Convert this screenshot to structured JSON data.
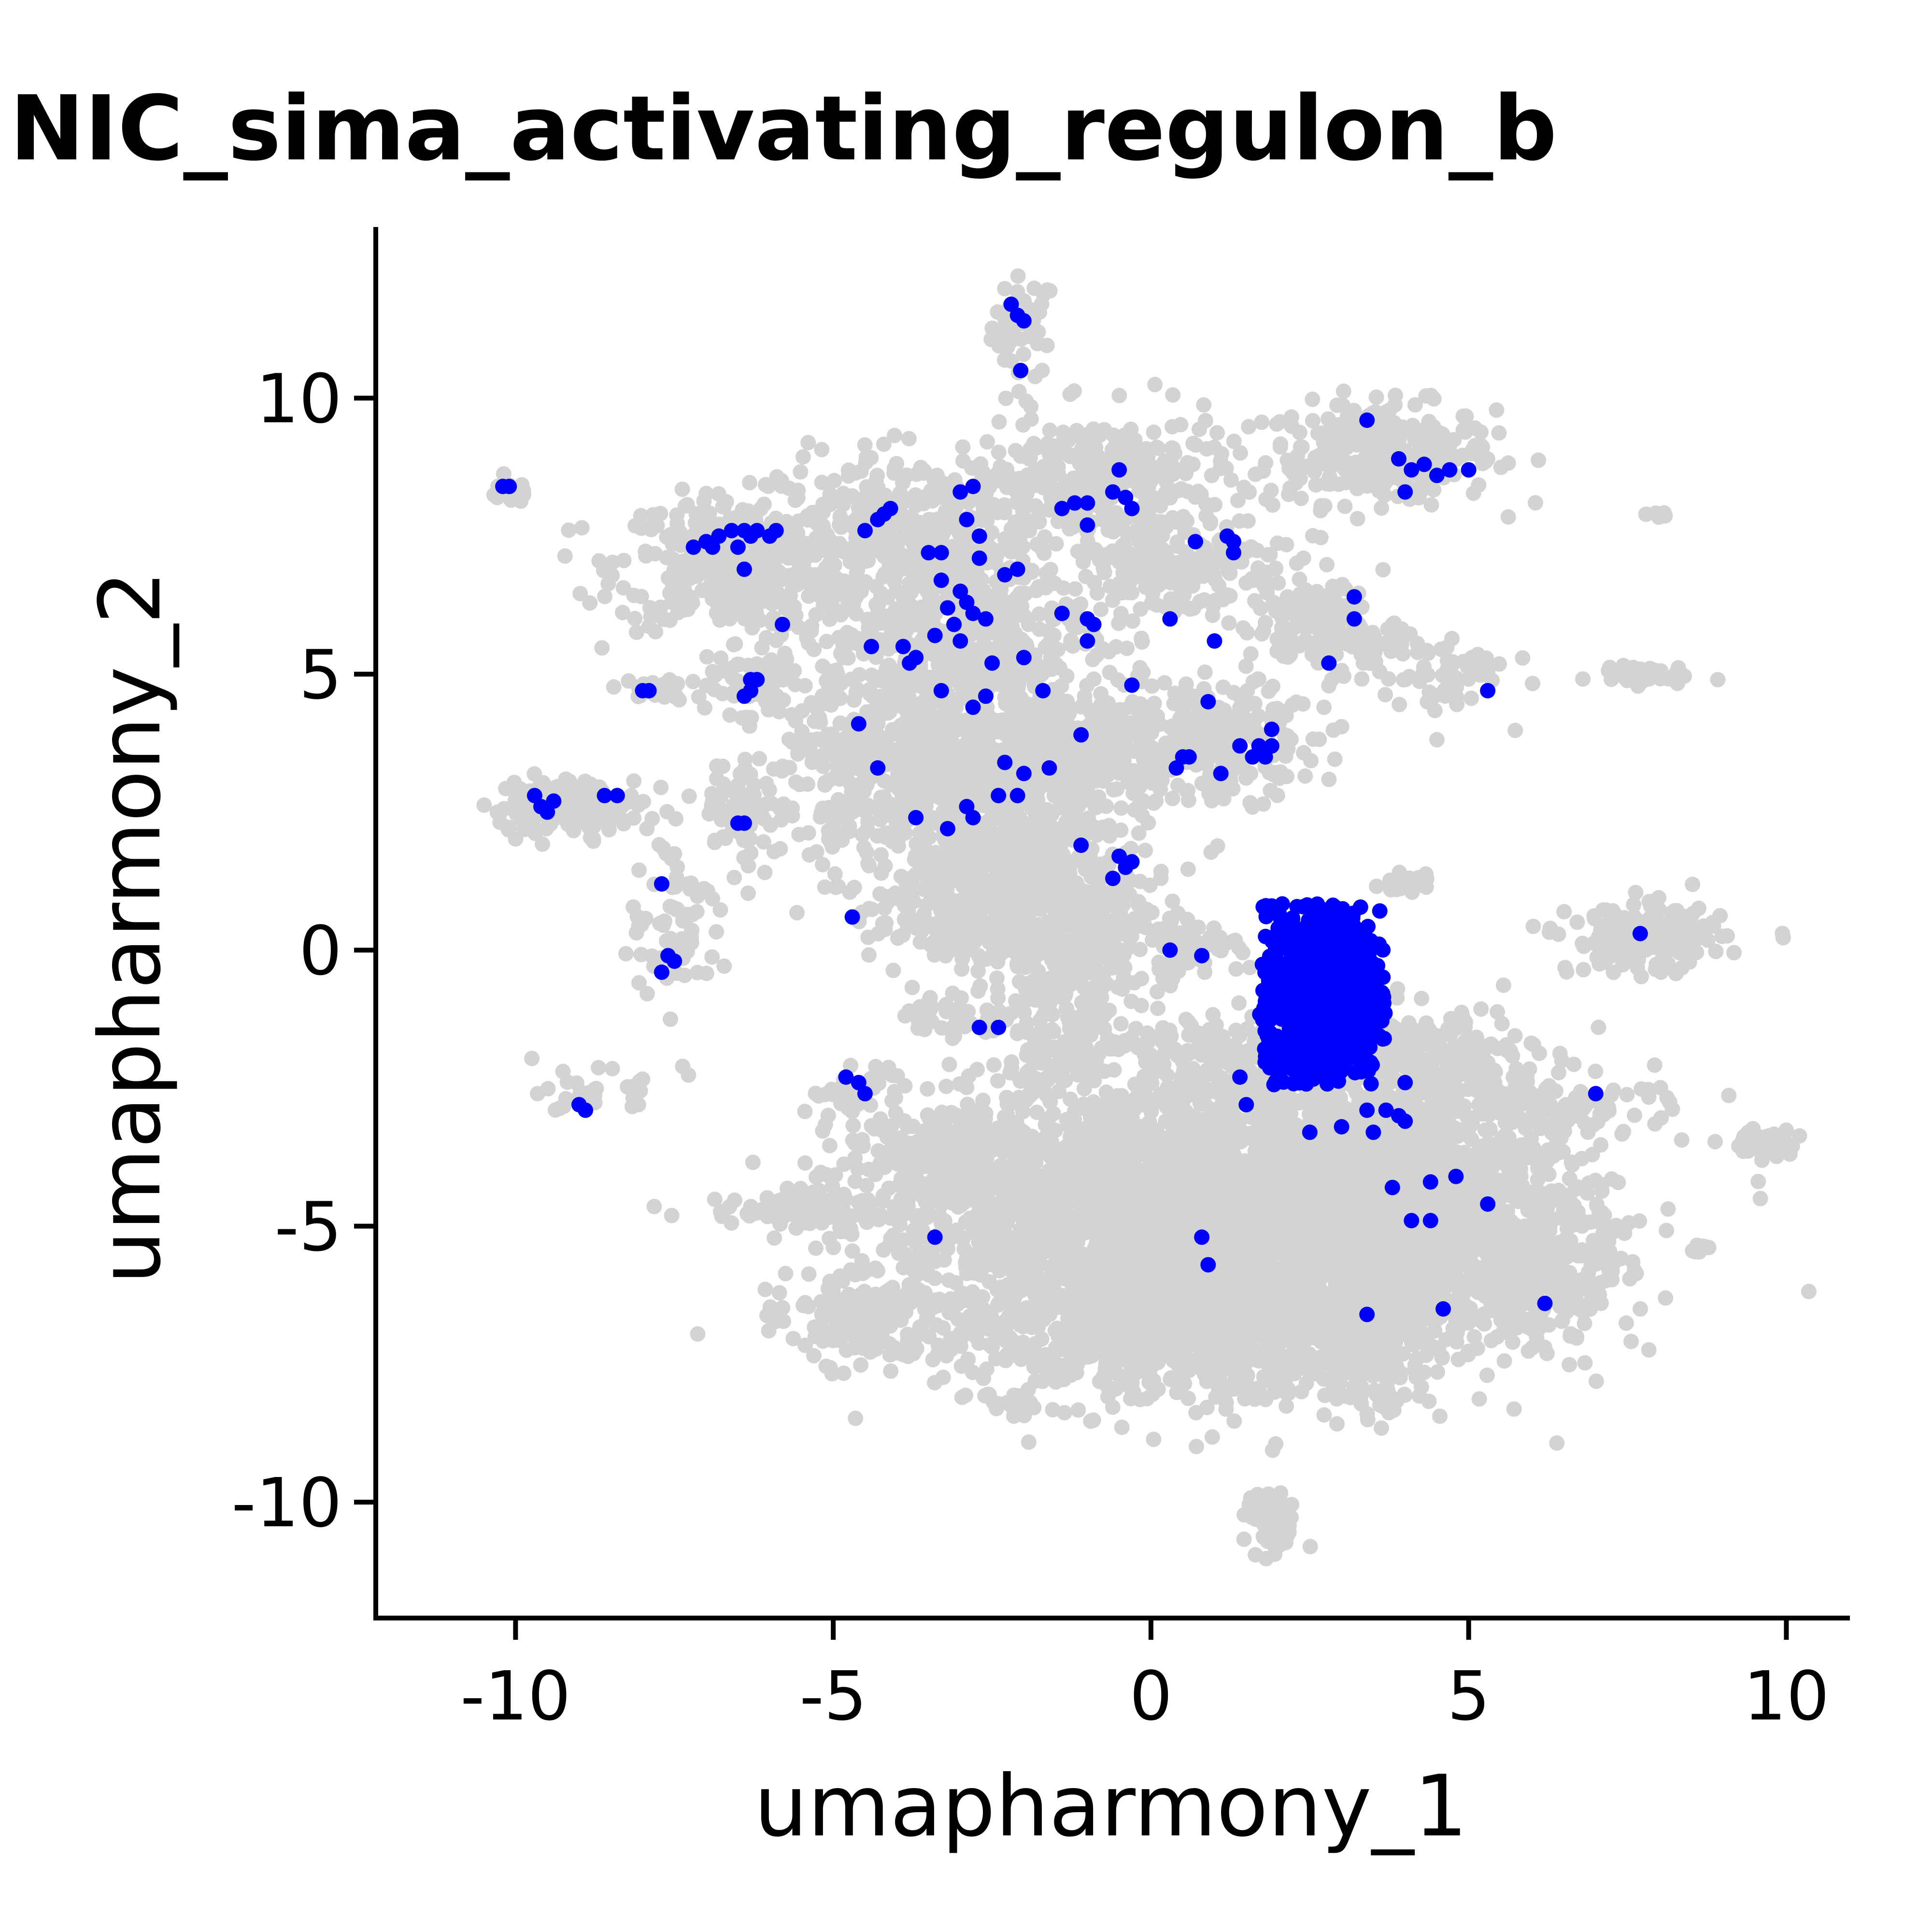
{
  "chart_data": {
    "type": "scatter",
    "title": "NIC_sima_activating_regulon_b",
    "xlabel": "umapharmony_1",
    "ylabel": "umapharmony_2",
    "xlim": [
      -12.2,
      11
    ],
    "ylim": [
      -12.1,
      13.1
    ],
    "xticks": [
      -10,
      -5,
      0,
      5,
      10
    ],
    "xtick_labels": [
      "-10",
      "-5",
      "0",
      "5",
      "10"
    ],
    "yticks": [
      -10,
      -5,
      0,
      5,
      10
    ],
    "ytick_labels": [
      "-10",
      "-5",
      "0",
      "5",
      "10"
    ],
    "grid": false,
    "legend": "none",
    "colors": {
      "background_cells": "#d3d3d3",
      "highlighted_cells": "#0000ff",
      "axis": "#000000"
    },
    "background_clusters": [
      {
        "cx": -2,
        "cy": 11.3,
        "sx": 0.25,
        "sy": 0.45,
        "n": 50
      },
      {
        "cx": 3.6,
        "cy": 9.0,
        "sx": 0.9,
        "sy": 0.45,
        "n": 300
      },
      {
        "cx": 8.0,
        "cy": 7.9,
        "sx": 0.1,
        "sy": 0.05,
        "n": 10
      },
      {
        "cx": -10.1,
        "cy": 8.3,
        "sx": 0.2,
        "sy": 0.1,
        "n": 20
      },
      {
        "cx": -6.6,
        "cy": 7.0,
        "sx": 0.9,
        "sy": 0.6,
        "n": 400
      },
      {
        "cx": -3.8,
        "cy": 7.4,
        "sx": 1.0,
        "sy": 0.8,
        "n": 400
      },
      {
        "cx": -0.8,
        "cy": 8.5,
        "sx": 1.0,
        "sy": 0.6,
        "n": 300
      },
      {
        "cx": -3.0,
        "cy": 5.8,
        "sx": 1.0,
        "sy": 0.8,
        "n": 300
      },
      {
        "cx": 0.4,
        "cy": 7.0,
        "sx": 0.9,
        "sy": 0.5,
        "n": 200
      },
      {
        "cx": 2.7,
        "cy": 5.8,
        "sx": 0.6,
        "sy": 0.4,
        "n": 150
      },
      {
        "cx": 4.6,
        "cy": 5.0,
        "sx": 0.5,
        "sy": 0.4,
        "n": 60
      },
      {
        "cx": 7.6,
        "cy": 5.0,
        "sx": 0.4,
        "sy": 0.1,
        "n": 40
      },
      {
        "cx": -6.3,
        "cy": 4.9,
        "sx": 0.4,
        "sy": 0.3,
        "n": 60
      },
      {
        "cx": -7.9,
        "cy": 4.7,
        "sx": 0.3,
        "sy": 0.1,
        "n": 20
      },
      {
        "cx": -3.2,
        "cy": 3.5,
        "sx": 1.3,
        "sy": 1.0,
        "n": 900
      },
      {
        "cx": -1.0,
        "cy": 3.7,
        "sx": 0.8,
        "sy": 0.6,
        "n": 300
      },
      {
        "cx": 1.2,
        "cy": 3.8,
        "sx": 0.7,
        "sy": 0.5,
        "n": 200
      },
      {
        "cx": -9.2,
        "cy": 2.6,
        "sx": 0.6,
        "sy": 0.25,
        "n": 150
      },
      {
        "cx": -6.4,
        "cy": 2.5,
        "sx": 0.3,
        "sy": 0.5,
        "n": 60
      },
      {
        "cx": -2.3,
        "cy": 1.5,
        "sx": 0.9,
        "sy": 0.9,
        "n": 500
      },
      {
        "cx": -7.4,
        "cy": 0.6,
        "sx": 0.4,
        "sy": 0.8,
        "n": 80
      },
      {
        "cx": -0.9,
        "cy": 0.2,
        "sx": 0.8,
        "sy": 0.6,
        "n": 200
      },
      {
        "cx": 4.0,
        "cy": 1.2,
        "sx": 0.2,
        "sy": 0.1,
        "n": 20
      },
      {
        "cx": 7.8,
        "cy": 0.2,
        "sx": 0.6,
        "sy": 0.3,
        "n": 200
      },
      {
        "cx": 0.6,
        "cy": 0.1,
        "sx": 0.4,
        "sy": 0.2,
        "n": 40
      },
      {
        "cx": -2.5,
        "cy": 0.6,
        "sx": 1.0,
        "sy": 0.3,
        "n": 150
      },
      {
        "cx": -3.2,
        "cy": -1.2,
        "sx": 0.5,
        "sy": 0.2,
        "n": 40
      },
      {
        "cx": -1.3,
        "cy": -1.5,
        "sx": 0.6,
        "sy": 0.6,
        "n": 150
      },
      {
        "cx": 1.0,
        "cy": -2.0,
        "sx": 0.8,
        "sy": 0.4,
        "n": 150
      },
      {
        "cx": 4.4,
        "cy": -2.0,
        "sx": 0.8,
        "sy": 0.5,
        "n": 200
      },
      {
        "cx": -8.8,
        "cy": -2.6,
        "sx": 0.4,
        "sy": 0.2,
        "n": 30
      },
      {
        "cx": -4.7,
        "cy": -2.5,
        "sx": 0.3,
        "sy": 0.2,
        "n": 30
      },
      {
        "cx": 6.6,
        "cy": -2.9,
        "sx": 0.9,
        "sy": 0.3,
        "n": 80
      },
      {
        "cx": 9.6,
        "cy": -3.5,
        "sx": 0.3,
        "sy": 0.15,
        "n": 40
      },
      {
        "cx": -5.4,
        "cy": -4.7,
        "sx": 0.8,
        "sy": 0.15,
        "n": 100
      },
      {
        "cx": -3.2,
        "cy": -3.7,
        "sx": 0.8,
        "sy": 0.4,
        "n": 200
      },
      {
        "cx": 0.5,
        "cy": -5.0,
        "sx": 2.3,
        "sy": 1.3,
        "n": 3000
      },
      {
        "cx": 3.5,
        "cy": -4.6,
        "sx": 1.7,
        "sy": 1.2,
        "n": 1500
      },
      {
        "cx": 5.8,
        "cy": -5.8,
        "sx": 0.7,
        "sy": 0.6,
        "n": 300
      },
      {
        "cx": -4.6,
        "cy": -6.7,
        "sx": 0.6,
        "sy": 0.4,
        "n": 150
      },
      {
        "cx": 1.0,
        "cy": -7.0,
        "sx": 1.8,
        "sy": 0.5,
        "n": 600
      },
      {
        "cx": 3.6,
        "cy": -7.4,
        "sx": 0.4,
        "sy": 0.6,
        "n": 100
      },
      {
        "cx": -2.1,
        "cy": -8.2,
        "sx": 0.2,
        "sy": 0.1,
        "n": 20
      },
      {
        "cx": 8.7,
        "cy": -5.4,
        "sx": 0.1,
        "sy": 0.05,
        "n": 10
      },
      {
        "cx": 1.9,
        "cy": -10.4,
        "sx": 0.2,
        "sy": 0.3,
        "n": 60
      }
    ],
    "highlighted_cluster": {
      "cx": 2.7,
      "cy": -0.8,
      "sx": 0.45,
      "sy": 0.75,
      "n": 1200
    },
    "highlighted_points": [
      [
        -2.2,
        11.7
      ],
      [
        -2.1,
        11.5
      ],
      [
        -2.0,
        11.4
      ],
      [
        -2.05,
        10.5
      ],
      [
        3.4,
        9.6
      ],
      [
        3.9,
        8.9
      ],
      [
        4.1,
        8.7
      ],
      [
        4.3,
        8.8
      ],
      [
        4.5,
        8.6
      ],
      [
        4.7,
        8.7
      ],
      [
        5.0,
        8.7
      ],
      [
        4.0,
        8.3
      ],
      [
        -10.2,
        8.4
      ],
      [
        -10.1,
        8.4
      ],
      [
        -7.2,
        7.3
      ],
      [
        -7.0,
        7.4
      ],
      [
        -6.8,
        7.5
      ],
      [
        -6.6,
        7.6
      ],
      [
        -6.4,
        7.6
      ],
      [
        -6.3,
        7.5
      ],
      [
        -6.2,
        7.6
      ],
      [
        -6.0,
        7.5
      ],
      [
        -5.9,
        7.6
      ],
      [
        -6.9,
        7.3
      ],
      [
        -6.5,
        7.3
      ],
      [
        -6.4,
        6.9
      ],
      [
        -5.8,
        5.9
      ],
      [
        -4.3,
        7.8
      ],
      [
        -4.2,
        7.9
      ],
      [
        -4.1,
        8.0
      ],
      [
        -4.5,
        7.6
      ],
      [
        -3.0,
        8.3
      ],
      [
        -2.8,
        8.4
      ],
      [
        -2.9,
        7.8
      ],
      [
        -2.7,
        7.5
      ],
      [
        -3.3,
        7.2
      ],
      [
        -3.5,
        7.2
      ],
      [
        -2.7,
        7.1
      ],
      [
        -1.4,
        8.0
      ],
      [
        -1.2,
        8.1
      ],
      [
        -1.0,
        8.1
      ],
      [
        -0.6,
        8.3
      ],
      [
        -0.5,
        8.7
      ],
      [
        -0.4,
        8.2
      ],
      [
        -0.3,
        8.0
      ],
      [
        -1.0,
        7.7
      ],
      [
        -3.0,
        6.5
      ],
      [
        -2.9,
        6.3
      ],
      [
        -2.8,
        6.1
      ],
      [
        -3.2,
        6.2
      ],
      [
        -3.3,
        6.7
      ],
      [
        -2.6,
        6.0
      ],
      [
        -3.1,
        5.9
      ],
      [
        -3.4,
        5.7
      ],
      [
        -3.0,
        5.6
      ],
      [
        -2.3,
        6.8
      ],
      [
        -2.1,
        6.9
      ],
      [
        -1.4,
        6.1
      ],
      [
        -1.0,
        6.0
      ],
      [
        -0.9,
        5.9
      ],
      [
        -1.0,
        5.6
      ],
      [
        -0.3,
        4.8
      ],
      [
        -2.0,
        5.3
      ],
      [
        -2.5,
        5.2
      ],
      [
        -3.7,
        5.3
      ],
      [
        -3.8,
        5.2
      ],
      [
        -3.9,
        5.5
      ],
      [
        -4.4,
        5.5
      ],
      [
        -3.3,
        4.7
      ],
      [
        -2.6,
        4.6
      ],
      [
        -2.8,
        4.4
      ],
      [
        -1.7,
        4.7
      ],
      [
        -2.3,
        3.4
      ],
      [
        -2.0,
        3.2
      ],
      [
        -1.6,
        3.3
      ],
      [
        -1.1,
        3.9
      ],
      [
        -4.6,
        4.1
      ],
      [
        -4.3,
        3.3
      ],
      [
        -6.3,
        4.9
      ],
      [
        -6.2,
        4.9
      ],
      [
        -6.4,
        4.6
      ],
      [
        -6.3,
        4.7
      ],
      [
        -8.0,
        4.7
      ],
      [
        -7.9,
        4.7
      ],
      [
        0.3,
        6.0
      ],
      [
        0.7,
        7.4
      ],
      [
        1.2,
        7.5
      ],
      [
        1.3,
        7.4
      ],
      [
        1.3,
        7.2
      ],
      [
        1.0,
        5.6
      ],
      [
        0.9,
        4.5
      ],
      [
        0.5,
        3.5
      ],
      [
        0.4,
        3.3
      ],
      [
        0.6,
        3.5
      ],
      [
        1.1,
        3.2
      ],
      [
        1.4,
        3.7
      ],
      [
        1.6,
        3.5
      ],
      [
        1.8,
        3.5
      ],
      [
        1.9,
        3.7
      ],
      [
        1.9,
        4.0
      ],
      [
        1.7,
        3.7
      ],
      [
        2.8,
        5.2
      ],
      [
        3.2,
        6.0
      ],
      [
        3.2,
        6.4
      ],
      [
        5.3,
        4.7
      ],
      [
        -9.7,
        2.8
      ],
      [
        -9.5,
        2.5
      ],
      [
        -9.4,
        2.7
      ],
      [
        -9.6,
        2.6
      ],
      [
        -8.6,
        2.8
      ],
      [
        -8.4,
        2.8
      ],
      [
        -6.4,
        2.3
      ],
      [
        -6.5,
        2.3
      ],
      [
        -2.9,
        2.6
      ],
      [
        -2.8,
        2.4
      ],
      [
        -3.2,
        2.2
      ],
      [
        -3.7,
        2.4
      ],
      [
        -2.1,
        2.8
      ],
      [
        -2.4,
        2.8
      ],
      [
        -1.1,
        1.9
      ],
      [
        -0.6,
        1.3
      ],
      [
        -0.5,
        1.7
      ],
      [
        -0.3,
        1.6
      ],
      [
        -0.4,
        1.5
      ],
      [
        -7.7,
        1.2
      ],
      [
        -7.6,
        -0.1
      ],
      [
        -7.7,
        -0.4
      ],
      [
        -7.5,
        -0.2
      ],
      [
        -4.7,
        0.6
      ],
      [
        0.3,
        0.0
      ],
      [
        0.8,
        -0.1
      ],
      [
        1.9,
        0.8
      ],
      [
        2.0,
        0.7
      ],
      [
        7.7,
        0.3
      ],
      [
        -2.7,
        -1.4
      ],
      [
        -2.4,
        -1.4
      ],
      [
        -4.8,
        -2.3
      ],
      [
        -4.6,
        -2.4
      ],
      [
        -4.5,
        -2.6
      ],
      [
        -9.0,
        -2.8
      ],
      [
        -8.9,
        -2.9
      ],
      [
        1.4,
        -2.3
      ],
      [
        1.5,
        -2.8
      ],
      [
        2.5,
        -3.3
      ],
      [
        3.0,
        -3.2
      ],
      [
        3.4,
        -2.9
      ],
      [
        3.7,
        -2.9
      ],
      [
        3.5,
        -3.3
      ],
      [
        3.9,
        -3.0
      ],
      [
        4.0,
        -3.1
      ],
      [
        4.0,
        -2.4
      ],
      [
        3.8,
        -4.3
      ],
      [
        4.4,
        -4.2
      ],
      [
        4.8,
        -4.1
      ],
      [
        5.3,
        -4.6
      ],
      [
        4.1,
        -4.9
      ],
      [
        4.4,
        -4.9
      ],
      [
        7.0,
        -2.6
      ],
      [
        6.2,
        -6.4
      ],
      [
        4.6,
        -6.5
      ],
      [
        3.4,
        -6.6
      ],
      [
        0.8,
        -5.2
      ],
      [
        0.9,
        -5.7
      ],
      [
        -3.4,
        -5.2
      ]
    ]
  }
}
